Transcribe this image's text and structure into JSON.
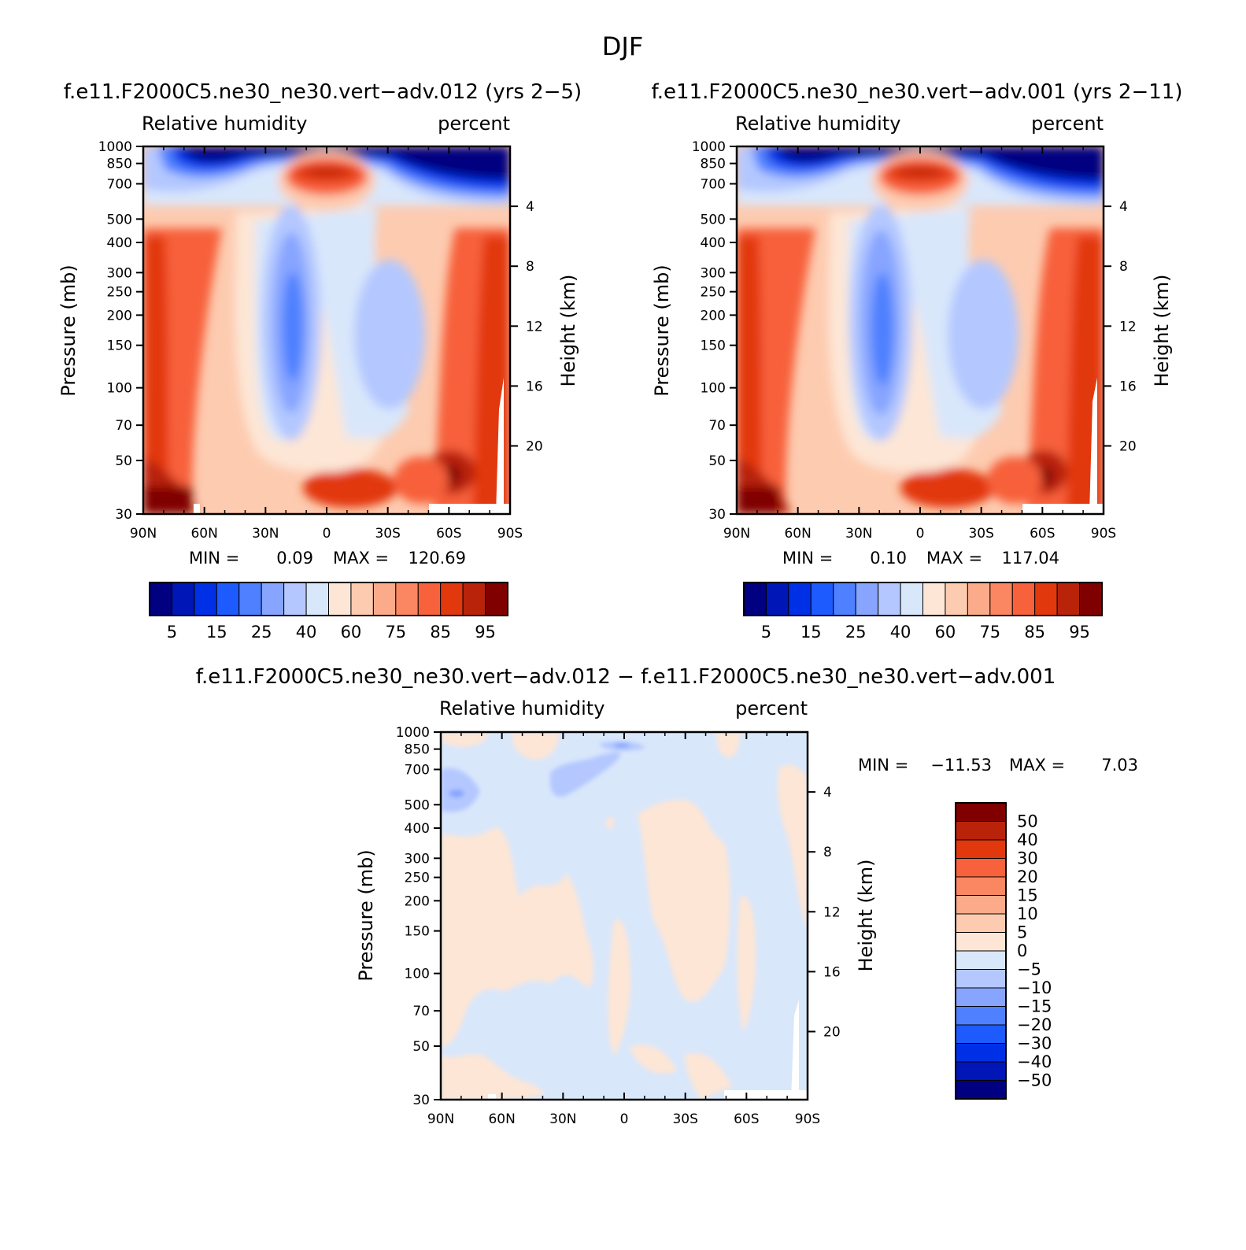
{
  "main_title": "DJF",
  "colors": {
    "rh_levels": [
      "#000080",
      "#0016b6",
      "#0030e6",
      "#1e5bff",
      "#4e80ff",
      "#87a5ff",
      "#b4c8ff",
      "#d9e7fb",
      "#fde6d6",
      "#fdcbb0",
      "#fcab8a",
      "#fa8762",
      "#f7613b",
      "#e2380e",
      "#b82309",
      "#800000"
    ],
    "diff_levels": [
      "#000080",
      "#0016b6",
      "#0030e6",
      "#1e5bff",
      "#4e80ff",
      "#87a5ff",
      "#b4c8ff",
      "#d9e7fb",
      "#fde6d6",
      "#fdcbb0",
      "#fcab8a",
      "#fa8762",
      "#f7613b",
      "#e2380e",
      "#b82309",
      "#800000"
    ]
  },
  "chart_data": [
    {
      "type": "heatmap",
      "title": "f.e11.F2000C5.ne30_ne30.vert−adv.012 (yrs 2−5)",
      "left_label": "Relative humidity",
      "right_label": "percent",
      "ylabel": "Pressure (mb)",
      "y2label": "Height (km)",
      "x_ticks": [
        "90N",
        "60N",
        "30N",
        "0",
        "30S",
        "60S",
        "90S"
      ],
      "y_ticks": [
        "30",
        "50",
        "70",
        "100",
        "150",
        "200",
        "250",
        "300",
        "400",
        "500",
        "700",
        "850",
        "1000"
      ],
      "y2_ticks": [
        "20",
        "16",
        "12",
        "8",
        "4"
      ],
      "stats": {
        "min_label": "MIN =",
        "min": "0.09",
        "max_label": "MAX =",
        "max": "120.69"
      },
      "colorbar_labels": [
        "5",
        "15",
        "25",
        "40",
        "60",
        "75",
        "85",
        "95"
      ],
      "ylim": [
        1000,
        30
      ],
      "xlim": [
        "90N",
        "90S"
      ]
    },
    {
      "type": "heatmap",
      "title": "f.e11.F2000C5.ne30_ne30.vert−adv.001 (yrs 2−11)",
      "left_label": "Relative humidity",
      "right_label": "percent",
      "ylabel": "Pressure (mb)",
      "y2label": "Height (km)",
      "x_ticks": [
        "90N",
        "60N",
        "30N",
        "0",
        "30S",
        "60S",
        "90S"
      ],
      "y_ticks": [
        "30",
        "50",
        "70",
        "100",
        "150",
        "200",
        "250",
        "300",
        "400",
        "500",
        "700",
        "850",
        "1000"
      ],
      "y2_ticks": [
        "20",
        "16",
        "12",
        "8",
        "4"
      ],
      "stats": {
        "min_label": "MIN =",
        "min": "0.10",
        "max_label": "MAX =",
        "max": "117.04"
      },
      "colorbar_labels": [
        "5",
        "15",
        "25",
        "40",
        "60",
        "75",
        "85",
        "95"
      ],
      "ylim": [
        1000,
        30
      ],
      "xlim": [
        "90N",
        "90S"
      ]
    },
    {
      "type": "heatmap",
      "title": "f.e11.F2000C5.ne30_ne30.vert−adv.012 − f.e11.F2000C5.ne30_ne30.vert−adv.001",
      "left_label": "Relative humidity",
      "right_label": "percent",
      "ylabel": "Pressure (mb)",
      "y2label": "Height (km)",
      "x_ticks": [
        "90N",
        "60N",
        "30N",
        "0",
        "30S",
        "60S",
        "90S"
      ],
      "y_ticks": [
        "30",
        "50",
        "70",
        "100",
        "150",
        "200",
        "250",
        "300",
        "400",
        "500",
        "700",
        "850",
        "1000"
      ],
      "y2_ticks": [
        "20",
        "16",
        "12",
        "8",
        "4"
      ],
      "stats": {
        "min_label": "MIN =",
        "min": "−11.53",
        "max_label": "MAX =",
        "max": "7.03"
      },
      "colorbar_labels": [
        "50",
        "40",
        "30",
        "20",
        "15",
        "10",
        "5",
        "0",
        "−5",
        "−10",
        "−15",
        "−20",
        "−30",
        "−40",
        "−50"
      ],
      "ylim": [
        1000,
        30
      ],
      "xlim": [
        "90N",
        "90S"
      ]
    }
  ]
}
